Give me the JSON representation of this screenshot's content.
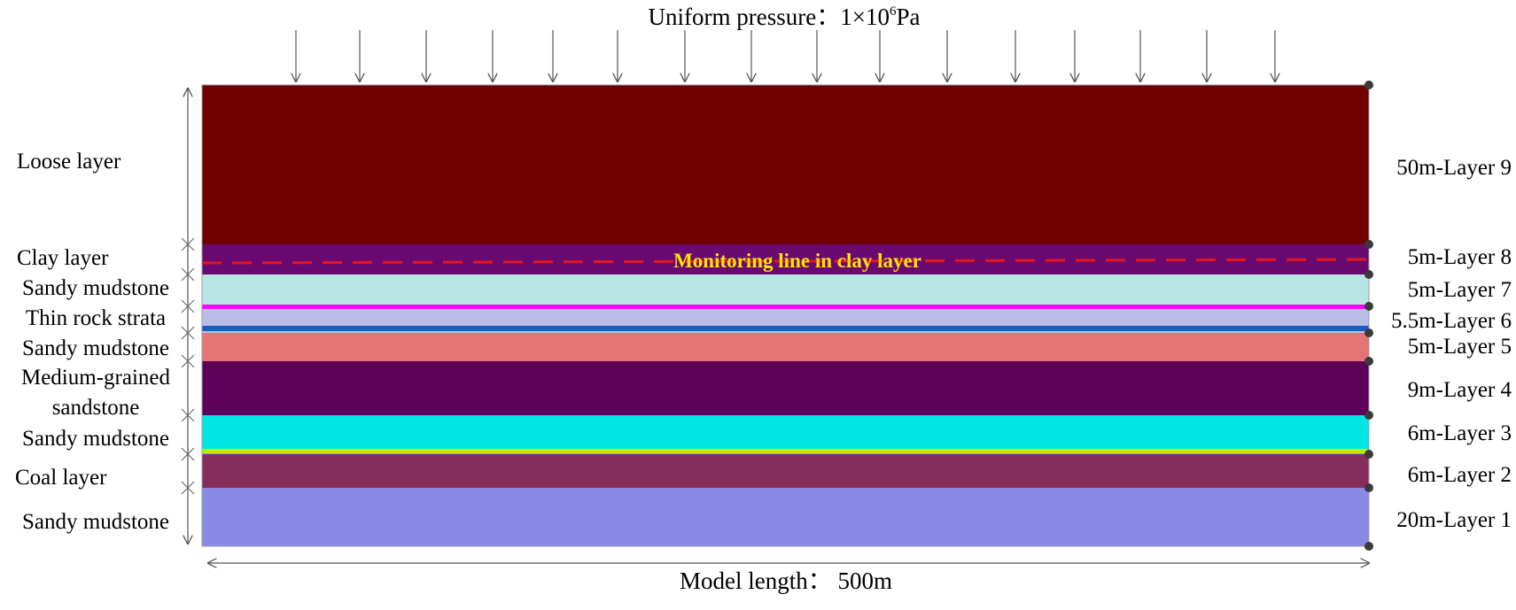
{
  "title": {
    "prefix": "Uniform pressure：1×10",
    "exponent": "6",
    "unit": "Pa"
  },
  "model_length": "Model length： 500m",
  "monitoring_line": {
    "label": "Monitoring line in clay layer",
    "line_color": "#e8141c",
    "text_color": "#ffe600"
  },
  "pressure_arrow_count": 16,
  "layers": [
    {
      "id": 9,
      "label": "50m-Layer 9",
      "thickness": 50,
      "color": "#700000"
    },
    {
      "id": 8,
      "label": "5m-Layer 8",
      "thickness": 5,
      "color": "#6a0a70"
    },
    {
      "id": 7,
      "label": "5m-Layer 7",
      "thickness": 5,
      "color": "#b8e4e4"
    },
    {
      "id": 6,
      "label": "5.5m-Layer 6",
      "thickness": 5.5,
      "color": "#b9bde8"
    },
    {
      "id": 5,
      "label": "5m-Layer 5",
      "thickness": 5,
      "color": "#e57475"
    },
    {
      "id": 4,
      "label": "9m-Layer 4",
      "thickness": 9,
      "color": "#5c0058"
    },
    {
      "id": 3,
      "label": "6m-Layer 3",
      "thickness": 6,
      "color": "#00e6e3"
    },
    {
      "id": 2,
      "label": "6m-Layer 2",
      "thickness": 6,
      "color": "#872d5c"
    },
    {
      "id": 1,
      "label": "20m-Layer 1",
      "thickness": 20,
      "color": "#8a89e6"
    }
  ],
  "thin_strips": [
    {
      "above_layer": 6,
      "color": "#ff00ff"
    },
    {
      "below_layer": 6,
      "color": "#1a5cc0"
    },
    {
      "above_layer": 2,
      "color": "#c8e600"
    }
  ],
  "rock_names": [
    {
      "lines": [
        "Loose layer"
      ]
    },
    {
      "lines": [
        "Clay layer"
      ]
    },
    {
      "lines": [
        "Sandy mudstone"
      ]
    },
    {
      "lines": [
        "Thin rock strata"
      ]
    },
    {
      "lines": [
        "Sandy mudstone"
      ]
    },
    {
      "lines": [
        "Medium-grained",
        "sandstone"
      ]
    },
    {
      "lines": [
        "Sandy mudstone"
      ]
    },
    {
      "lines": [
        "Coal layer"
      ]
    },
    {
      "lines": [
        "Sandy mudstone"
      ]
    }
  ]
}
